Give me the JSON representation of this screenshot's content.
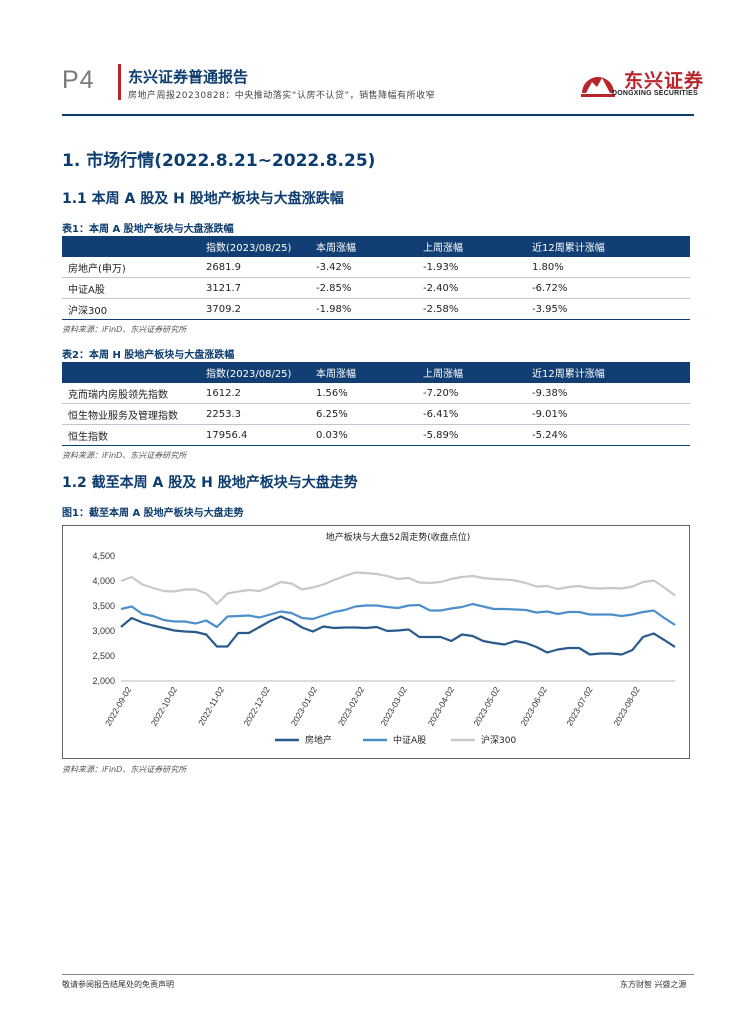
{
  "header": {
    "page_no": "P4",
    "brand_title": "东兴证券普通报告",
    "subtitle": "房地产周报20230828：中央推动落实“认房不认贷”，销售降幅有所收窄",
    "logo_name": "东兴证券",
    "logo_en": "DONGXING SECURITIES",
    "colors": {
      "brand_red": "#b8262b",
      "navy": "#0d3c6e"
    }
  },
  "section1": {
    "title": "1. 市场行情(2022.8.21~2022.8.25)"
  },
  "sub1": {
    "title": "1.1 本周 A 股及 H 股地产板块与大盘涨跌幅"
  },
  "table1": {
    "caption": "表1：本周 A 股地产板块与大盘涨跌幅",
    "headers": [
      "",
      "指数(2023/08/25)",
      "本周涨幅",
      "上周涨幅",
      "近12周累计涨幅"
    ],
    "rows": [
      [
        "房地产(申万)",
        "2681.9",
        "-3.42%",
        "-1.93%",
        "1.80%"
      ],
      [
        "中证A股",
        "3121.7",
        "-2.85%",
        "-2.40%",
        "-6.72%"
      ],
      [
        "沪深300",
        "3709.2",
        "-1.98%",
        "-2.58%",
        "-3.95%"
      ]
    ],
    "source": "资料来源：iFinD、东兴证券研究所"
  },
  "table2": {
    "caption": "表2：本周 H 股地产板块与大盘涨跌幅",
    "headers": [
      "",
      "指数(2023/08/25)",
      "本周涨幅",
      "上周涨幅",
      "近12周累计涨幅"
    ],
    "rows": [
      [
        "克而瑞内房股领先指数",
        "1612.2",
        "1.56%",
        "-7.20%",
        "-9.38%"
      ],
      [
        "恒生物业服务及管理指数",
        "2253.3",
        "6.25%",
        "-6.41%",
        "-9.01%"
      ],
      [
        "恒生指数",
        "17956.4",
        "0.03%",
        "-5.89%",
        "-5.24%"
      ]
    ],
    "source": "资料来源：iFinD、东兴证券研究所"
  },
  "sub2": {
    "title": "1.2 截至本周 A 股及 H 股地产板块与大盘走势"
  },
  "figure1": {
    "caption": "图1：截至本周 A 股地产板块与大盘走势",
    "source": "资料来源：iFinD、东兴证券研究所"
  },
  "chart_data": {
    "type": "line",
    "title": "地产板块与大盘52周走势(收盘点位)",
    "xlabel": "",
    "ylabel": "",
    "ylim": [
      2000,
      4500
    ],
    "y_ticks": [
      "2,000",
      "2,500",
      "3,000",
      "3,500",
      "4,000",
      "4,500"
    ],
    "x_ticks": [
      "2022-09-02",
      "2022-10-02",
      "2022-11-02",
      "2022-12-02",
      "2023-01-02",
      "2023-02-02",
      "2023-03-02",
      "2023-04-02",
      "2023-05-02",
      "2023-06-02",
      "2023-07-02",
      "2023-08-02"
    ],
    "x": [
      "2022-08-26",
      "2022-09-02",
      "2022-09-09",
      "2022-09-16",
      "2022-09-23",
      "2022-09-30",
      "2022-10-07",
      "2022-10-14",
      "2022-10-21",
      "2022-10-28",
      "2022-11-04",
      "2022-11-11",
      "2022-11-18",
      "2022-11-25",
      "2022-12-02",
      "2022-12-09",
      "2022-12-16",
      "2022-12-23",
      "2022-12-30",
      "2023-01-06",
      "2023-01-13",
      "2023-01-20",
      "2023-01-27",
      "2023-02-03",
      "2023-02-10",
      "2023-02-17",
      "2023-02-24",
      "2023-03-03",
      "2023-03-10",
      "2023-03-17",
      "2023-03-24",
      "2023-03-31",
      "2023-04-07",
      "2023-04-14",
      "2023-04-21",
      "2023-04-28",
      "2023-05-05",
      "2023-05-12",
      "2023-05-19",
      "2023-05-26",
      "2023-06-02",
      "2023-06-09",
      "2023-06-16",
      "2023-06-23",
      "2023-06-30",
      "2023-07-07",
      "2023-07-14",
      "2023-07-21",
      "2023-07-28",
      "2023-08-04",
      "2023-08-11",
      "2023-08-18",
      "2023-08-25"
    ],
    "grid": false,
    "legend": "bottom",
    "series": [
      {
        "name": "房地产",
        "color": "#2a5a8c",
        "values": [
          3080,
          3260,
          3170,
          3110,
          3060,
          3010,
          2990,
          2980,
          2930,
          2690,
          2690,
          2960,
          2960,
          3080,
          3200,
          3290,
          3200,
          3070,
          2990,
          3090,
          3060,
          3070,
          3070,
          3060,
          3080,
          3000,
          3010,
          3030,
          2880,
          2880,
          2880,
          2800,
          2930,
          2900,
          2800,
          2760,
          2730,
          2800,
          2760,
          2680,
          2570,
          2630,
          2660,
          2660,
          2530,
          2550,
          2550,
          2530,
          2620,
          2880,
          2950,
          2820,
          2682
        ]
      },
      {
        "name": "中证A股",
        "color": "#4d8fcc",
        "values": [
          3440,
          3490,
          3340,
          3300,
          3220,
          3190,
          3190,
          3150,
          3210,
          3080,
          3290,
          3300,
          3310,
          3270,
          3330,
          3390,
          3360,
          3260,
          3240,
          3310,
          3380,
          3420,
          3490,
          3510,
          3510,
          3480,
          3460,
          3510,
          3520,
          3410,
          3410,
          3450,
          3480,
          3540,
          3490,
          3440,
          3440,
          3430,
          3420,
          3370,
          3390,
          3340,
          3380,
          3380,
          3330,
          3330,
          3330,
          3300,
          3330,
          3380,
          3410,
          3260,
          3122
        ]
      },
      {
        "name": "沪深300",
        "color": "#c8c8c8",
        "values": [
          4000,
          4080,
          3930,
          3860,
          3800,
          3790,
          3830,
          3830,
          3750,
          3540,
          3750,
          3790,
          3820,
          3800,
          3880,
          3980,
          3950,
          3830,
          3870,
          3930,
          4020,
          4100,
          4170,
          4160,
          4140,
          4100,
          4040,
          4060,
          3970,
          3960,
          3980,
          4040,
          4080,
          4100,
          4060,
          4040,
          4030,
          4010,
          3960,
          3890,
          3900,
          3840,
          3880,
          3900,
          3860,
          3850,
          3860,
          3850,
          3890,
          3980,
          4010,
          3870,
          3709
        ]
      }
    ]
  },
  "footer": {
    "left": "敬请参阅报告结尾处的免责声明",
    "right": "东方财智 兴盛之源"
  }
}
